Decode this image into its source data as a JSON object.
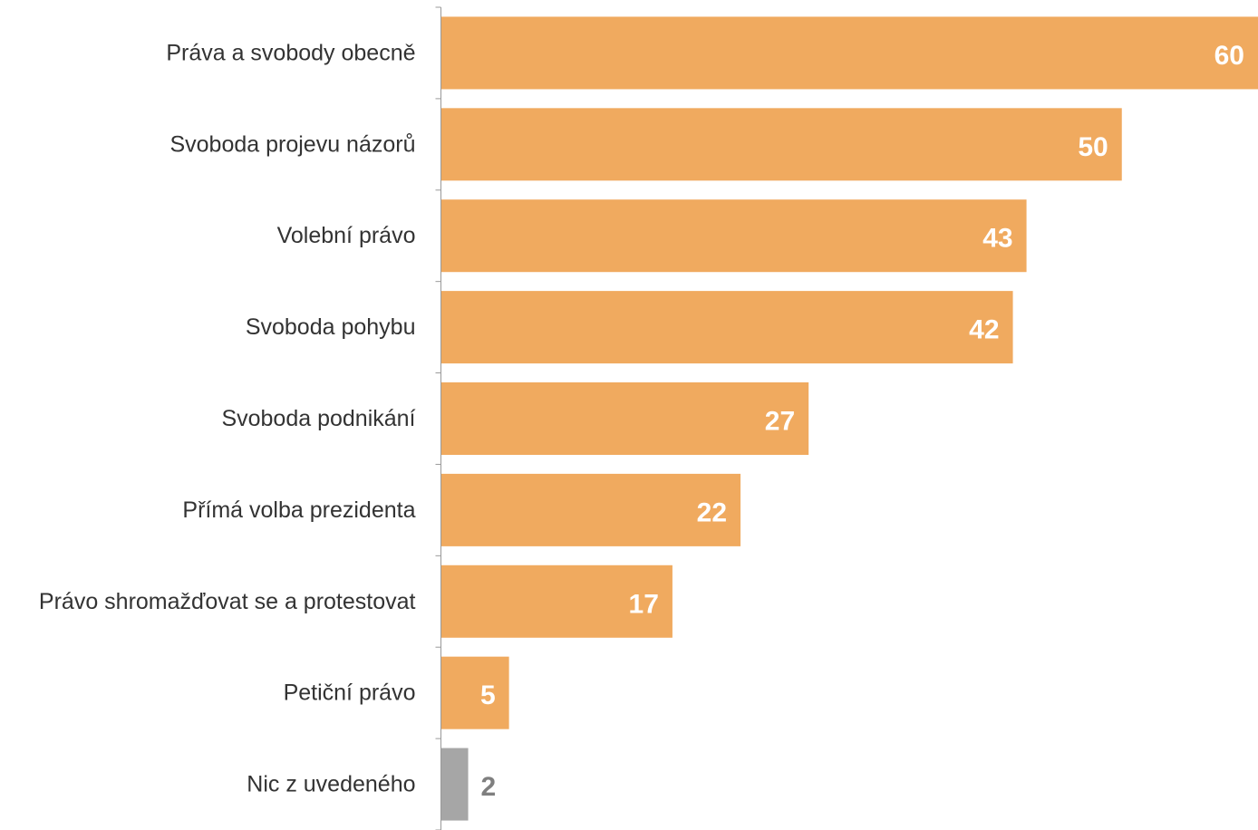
{
  "chart_data": {
    "type": "bar",
    "orientation": "horizontal",
    "title": "",
    "xlabel": "",
    "ylabel": "",
    "xlim": [
      0,
      60
    ],
    "grid": false,
    "legend": "none",
    "categories": [
      "Práva a svobody obecně",
      "Svoboda projevu názorů",
      "Volební právo",
      "Svoboda pohybu",
      "Svoboda podnikání",
      "Přímá volba prezidenta",
      "Právo shromažďovat se a protestovat",
      "Petiční právo",
      "Nic z uvedeného"
    ],
    "values": [
      60,
      50,
      43,
      42,
      27,
      22,
      17,
      5,
      2
    ],
    "bar_colors": [
      "#f0aa5f",
      "#f0aa5f",
      "#f0aa5f",
      "#f0aa5f",
      "#f0aa5f",
      "#f0aa5f",
      "#f0aa5f",
      "#f0aa5f",
      "#a6a6a6"
    ],
    "label_colors": [
      "#ffffff",
      "#ffffff",
      "#ffffff",
      "#ffffff",
      "#ffffff",
      "#ffffff",
      "#ffffff",
      "#ffffff",
      "#7f7f7f"
    ],
    "label_positions": [
      "inside",
      "inside",
      "inside",
      "inside",
      "inside",
      "inside",
      "inside",
      "inside",
      "outside"
    ]
  },
  "colors": {
    "accent": "#f0aa5f",
    "neutral_bar": "#a6a6a6",
    "axis": "#999999",
    "category_text": "#333333"
  }
}
